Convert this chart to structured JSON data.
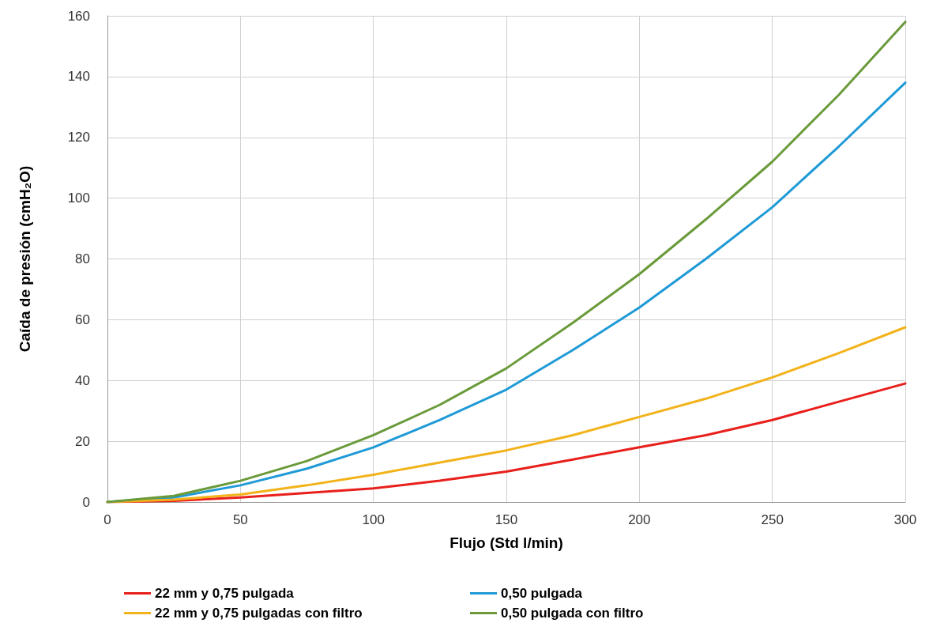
{
  "chart_data": {
    "type": "line",
    "xlabel": "Flujo (Std l/min)",
    "ylabel": "Caída de presión (cmH₂O)",
    "x": [
      0,
      25,
      50,
      75,
      100,
      125,
      150,
      175,
      200,
      225,
      250,
      275,
      300
    ],
    "series": [
      {
        "name": "22 mm y 0,75 pulgada",
        "color": "#e8201c",
        "values": [
          0,
          0.4,
          1.5,
          3,
          4.5,
          7,
          10,
          14,
          18,
          22,
          27,
          33,
          39
        ]
      },
      {
        "name": "0,50 pulgada",
        "color": "#1f9ad6",
        "values": [
          0,
          1.5,
          5.5,
          11,
          18,
          27,
          37,
          50,
          64,
          80,
          97,
          117,
          138
        ]
      },
      {
        "name": "22 mm y 0,75 pulgadas con filtro",
        "color": "#f2b21a",
        "values": [
          0,
          0.8,
          2.5,
          5.5,
          9,
          13,
          17,
          22,
          28,
          34,
          41,
          49,
          57.5
        ]
      },
      {
        "name": "0,50 pulgada con filtro",
        "color": "#6a9a3a",
        "values": [
          0,
          2,
          7,
          13.5,
          22,
          32,
          44,
          59,
          75,
          93,
          112,
          134,
          158
        ]
      }
    ],
    "xlim": [
      0,
      300
    ],
    "xticks": [
      0,
      50,
      100,
      150,
      200,
      250,
      300
    ],
    "ylim": [
      0,
      160
    ],
    "yticks": [
      0,
      20,
      40,
      60,
      80,
      100,
      120,
      140,
      160
    ],
    "grid": true,
    "legend": "bottom",
    "marker": "none",
    "line_style": "solid"
  }
}
